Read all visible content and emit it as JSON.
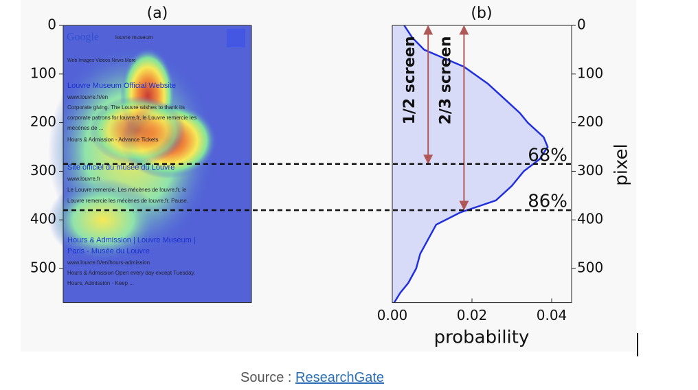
{
  "chart_data": [
    {
      "type": "heatmap",
      "title": "(a)",
      "ylim": [
        0,
        570
      ],
      "yticks": [
        0,
        100,
        200,
        300,
        400,
        500
      ],
      "screenshot_text": [
        "Google",
        "louvre museum",
        "Web   Images   Videos   News   More",
        "Louvre Museum Official Website",
        "www.louvre.fr/en",
        "Corporate giving. The Louvre wishes to thank its",
        "corporate patrons for louvre.fr, le Louvre remercie les",
        "mécènes de ...",
        "Hours & Admission - Advance Tickets",
        "Site officiel du musée du Louvre",
        "www.louvre.fr",
        "Le Louvre remercie. Les mécènes de louvre.fr, le",
        "Louvre remercie les mécènes de louvre.fr. Pause.",
        "Hours & Admission | Louvre Museum |",
        "Paris - Musée du Louvre",
        "www.louvre.fr/en/hours-admission",
        "Hours & Admission Open every day except Tuesday.",
        "Hours, Admission · Keep ..."
      ]
    },
    {
      "type": "area",
      "title": "(b)",
      "xlabel": "probability",
      "ylabel": "pixel",
      "pixel": [
        0,
        25,
        50,
        85,
        120,
        150,
        180,
        200,
        230,
        250,
        275,
        300,
        330,
        360,
        385,
        410,
        440,
        470,
        500,
        530,
        550,
        570
      ],
      "values": [
        0.003,
        0.005,
        0.008,
        0.018,
        0.024,
        0.028,
        0.032,
        0.034,
        0.038,
        0.039,
        0.037,
        0.033,
        0.03,
        0.026,
        0.017,
        0.011,
        0.009,
        0.007,
        0.006,
        0.004,
        0.002,
        0.0005
      ],
      "color": "#1f2fe0",
      "fill": "#d8dbf7",
      "xlim": [
        0,
        0.045
      ],
      "xticks": [
        {
          "value": 0,
          "label": "0.00"
        },
        {
          "value": 0.02,
          "label": "0.02"
        },
        {
          "value": 0.04,
          "label": "0.04"
        }
      ],
      "ylim": [
        0,
        570
      ],
      "yticks": [
        0,
        100,
        200,
        300,
        400,
        500
      ],
      "thresholds": [
        {
          "label": "68%",
          "pixel": 285
        },
        {
          "label": "86%",
          "pixel": 380
        }
      ],
      "arrows": [
        {
          "label": "1/2 screen",
          "x": 0.009,
          "pixel": 285
        },
        {
          "label": "2/3 screen",
          "x": 0.018,
          "pixel": 380
        }
      ]
    }
  ],
  "footer": {
    "prefix": "Source :",
    "link": "ResearchGate"
  }
}
